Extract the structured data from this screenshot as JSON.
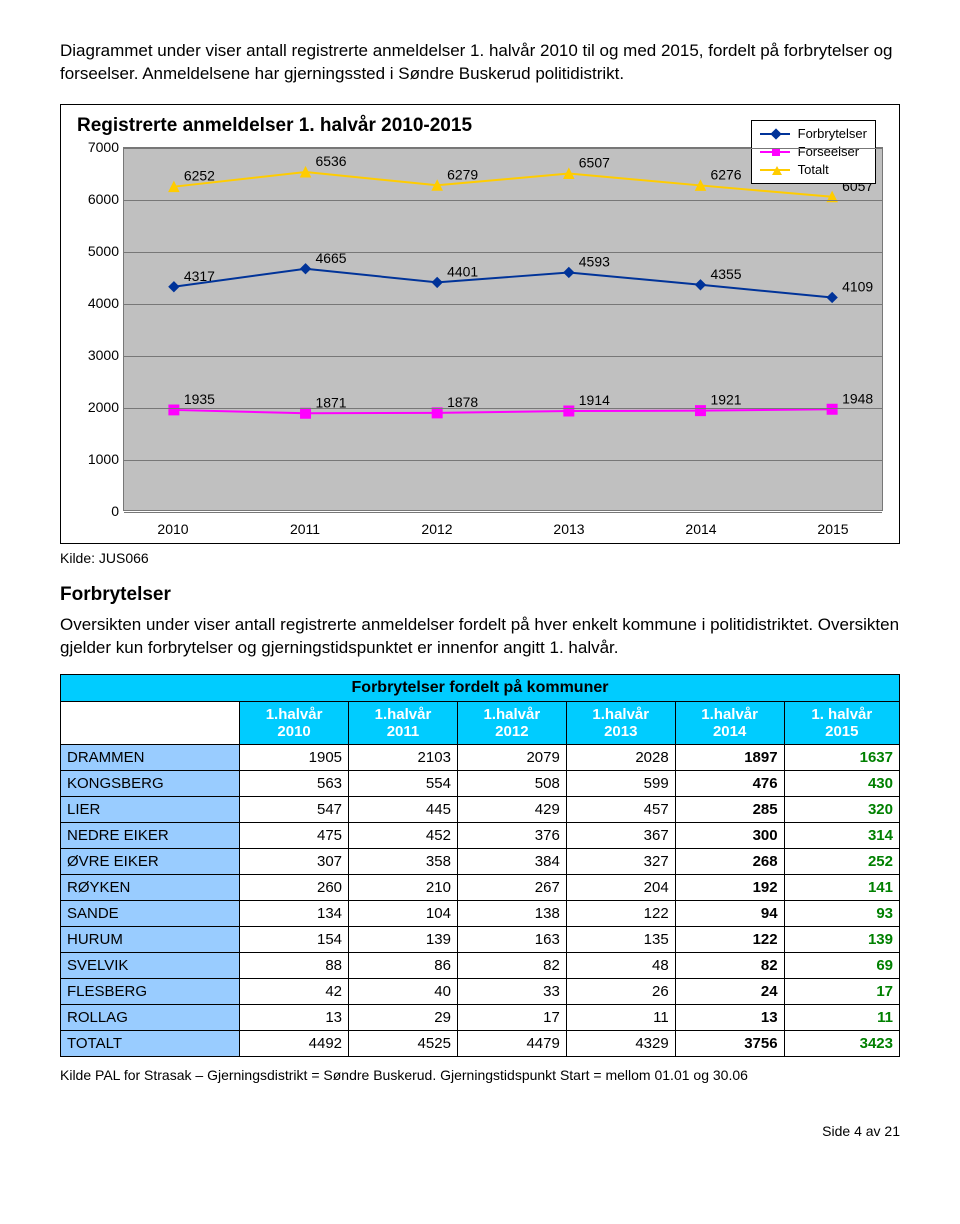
{
  "intro": "Diagrammet under viser antall registrerte anmeldelser 1. halvår 2010 til og med 2015, fordelt på forbrytelser og forseelser. Anmeldelsene har gjerningssted i Søndre Buskerud politidistrikt.",
  "chart": {
    "title": "Registrerte anmeldelser 1. halvår 2010-2015",
    "type": "line",
    "categories": [
      "2010",
      "2011",
      "2012",
      "2013",
      "2014",
      "2015"
    ],
    "series": [
      {
        "name": "Forbrytelser",
        "color": "#003399",
        "marker": "diamond",
        "values": [
          4317,
          4665,
          4401,
          4593,
          4355,
          4109
        ]
      },
      {
        "name": "Forseelser",
        "color": "#ff00ff",
        "marker": "square",
        "values": [
          1935,
          1871,
          1878,
          1914,
          1921,
          1948
        ]
      },
      {
        "name": "Totalt",
        "color": "#ffcc00",
        "marker": "triangle",
        "values": [
          6252,
          6536,
          6279,
          6507,
          6276,
          6057
        ]
      }
    ],
    "ylim": [
      0,
      7000
    ],
    "ytick_step": 1000,
    "background_color": "#c0c0c0",
    "grid_color": "#777777",
    "label_fontsize": 14,
    "title_fontsize": 19,
    "line_width": 2
  },
  "source_line": "Kilde: JUS066",
  "section_heading": "Forbrytelser",
  "section_body": "Oversikten under viser antall registrerte anmeldelser fordelt på hver enkelt kommune i politidistriktet. Oversikten gjelder kun forbrytelser og gjerningstidspunktet er innenfor angitt 1. halvår.",
  "table": {
    "title": "Forbrytelser fordelt på kommuner",
    "header_bg": "#00ccff",
    "label_bg": "#99ccff",
    "bold_cols": [
      5,
      6
    ],
    "green_col": 6,
    "columns": [
      "",
      "1.halvår 2010",
      "1.halvår 2011",
      "1.halvår 2012",
      "1.halvår 2013",
      "1.halvår 2014",
      "1. halvår 2015"
    ],
    "rows": [
      [
        "DRAMMEN",
        1905,
        2103,
        2079,
        2028,
        1897,
        1637
      ],
      [
        "KONGSBERG",
        563,
        554,
        508,
        599,
        476,
        430
      ],
      [
        "LIER",
        547,
        445,
        429,
        457,
        285,
        320
      ],
      [
        "NEDRE EIKER",
        475,
        452,
        376,
        367,
        300,
        314
      ],
      [
        "ØVRE EIKER",
        307,
        358,
        384,
        327,
        268,
        252
      ],
      [
        "RØYKEN",
        260,
        210,
        267,
        204,
        192,
        141
      ],
      [
        "SANDE",
        134,
        104,
        138,
        122,
        94,
        93
      ],
      [
        "HURUM",
        154,
        139,
        163,
        135,
        122,
        139
      ],
      [
        "SVELVIK",
        88,
        86,
        82,
        48,
        82,
        69
      ],
      [
        "FLESBERG",
        42,
        40,
        33,
        26,
        24,
        17
      ],
      [
        "ROLLAG",
        13,
        29,
        17,
        11,
        13,
        11
      ],
      [
        "TOTALT",
        4492,
        4525,
        4479,
        4329,
        3756,
        3423
      ]
    ]
  },
  "footnote": "Kilde PAL for Strasak – Gjerningsdistrikt = Søndre Buskerud. Gjerningstidspunkt Start = mellom 01.01 og 30.06",
  "pagenum": "Side 4 av 21"
}
